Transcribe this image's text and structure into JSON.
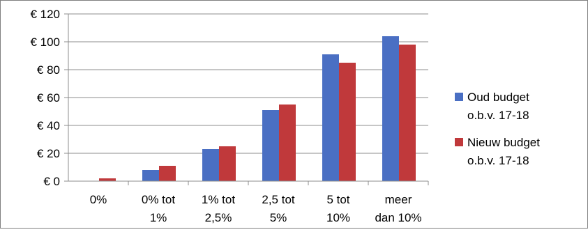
{
  "chart_data": {
    "type": "bar",
    "categories": [
      [
        "0%"
      ],
      [
        "0% tot",
        "1%"
      ],
      [
        "1% tot",
        "2,5%"
      ],
      [
        "2,5 tot",
        "5%"
      ],
      [
        "5 tot",
        "10%"
      ],
      [
        "meer",
        "dan 10%"
      ]
    ],
    "series": [
      {
        "name": "Oud budget o.b.v. 17-18",
        "name_lines": [
          "Oud budget",
          "o.b.v. 17-18"
        ],
        "color": "#4A6FC3",
        "values": [
          0,
          8,
          23,
          51,
          91,
          104
        ]
      },
      {
        "name": "Nieuw budget o.b.v. 17-18",
        "name_lines": [
          "Nieuw budget",
          "o.b.v. 17-18"
        ],
        "color": "#C0393B",
        "values": [
          2,
          11,
          25,
          55,
          85,
          98
        ]
      }
    ],
    "yticks": [
      "€ 0",
      "€ 20",
      "€ 40",
      "€ 60",
      "€ 80",
      "€ 100",
      "€ 120"
    ],
    "ylim": [
      0,
      120
    ],
    "ystep": 20,
    "grid": true,
    "legend": "right",
    "title": "",
    "xlabel": "",
    "ylabel": ""
  }
}
